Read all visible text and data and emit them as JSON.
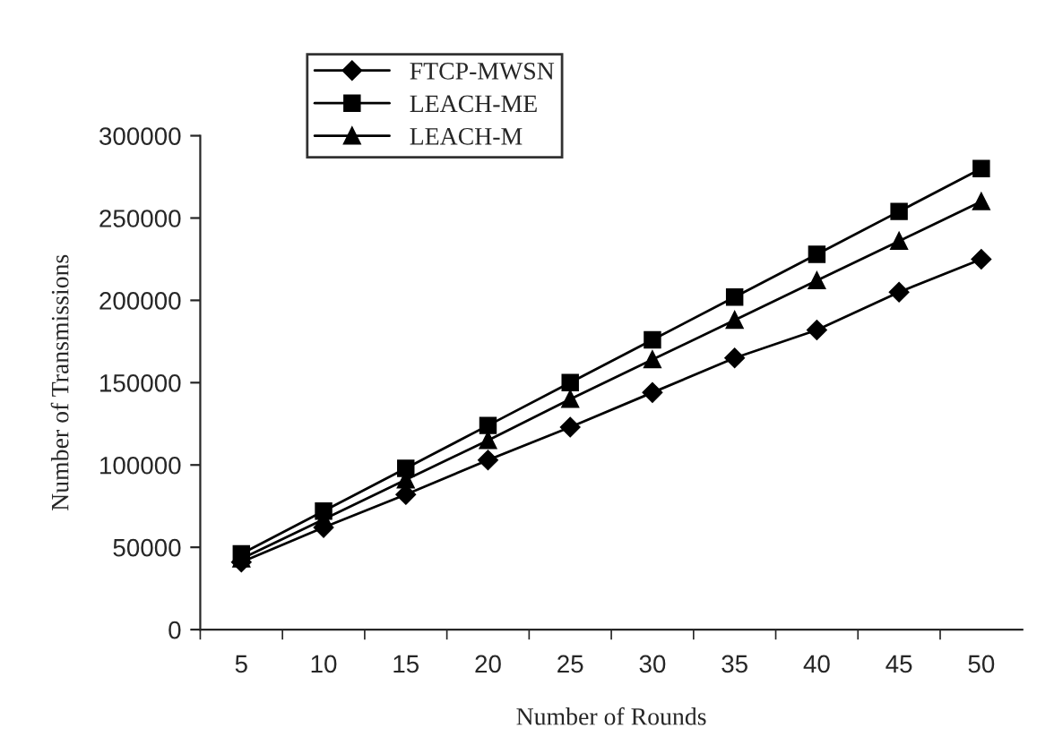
{
  "chart_data": {
    "type": "line",
    "xlabel": "Number of Rounds",
    "ylabel": "Number of Transmissions",
    "categories": [
      "5",
      "10",
      "15",
      "20",
      "25",
      "30",
      "35",
      "40",
      "45",
      "50"
    ],
    "series": [
      {
        "name": "FTCP-MWSN",
        "color": "#000000",
        "marker": "diamond",
        "values": [
          41000,
          62000,
          82000,
          103000,
          123000,
          144000,
          165000,
          182000,
          205000,
          225000
        ]
      },
      {
        "name": "LEACH-ME",
        "color": "#000000",
        "marker": "square",
        "values": [
          46000,
          72000,
          98000,
          124000,
          150000,
          176000,
          202000,
          228000,
          254000,
          280000
        ]
      },
      {
        "name": "LEACH-M",
        "color": "#000000",
        "marker": "triangle",
        "values": [
          43000,
          67000,
          91000,
          115000,
          140000,
          164000,
          188000,
          212000,
          236000,
          260000
        ]
      }
    ],
    "ylim": [
      0,
      300000
    ],
    "yticks": [
      0,
      50000,
      100000,
      150000,
      200000,
      250000,
      300000
    ],
    "grid": false,
    "legend": "top left",
    "line_style": "solid"
  }
}
